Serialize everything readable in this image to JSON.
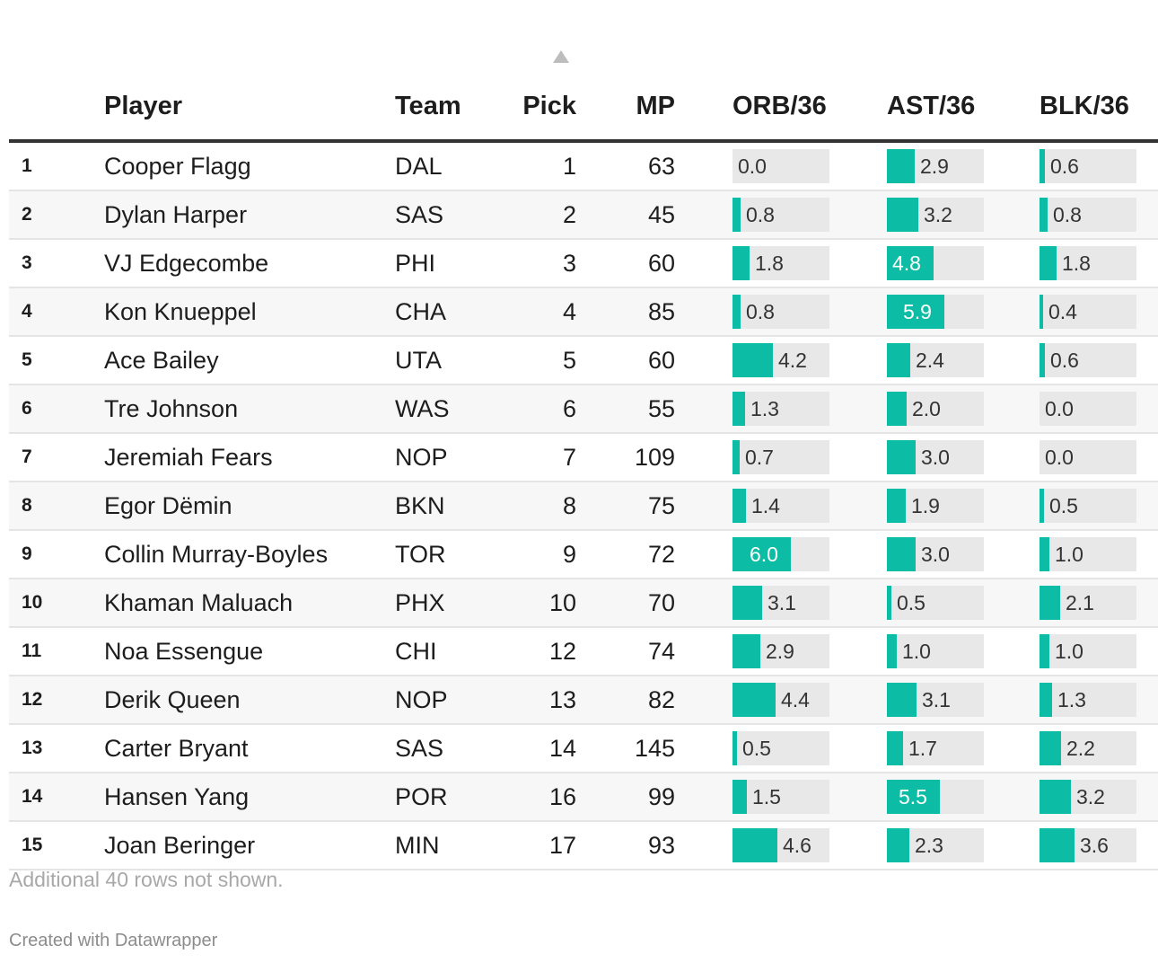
{
  "chart_data": {
    "type": "table",
    "columns": [
      "",
      "Player",
      "Team",
      "Pick",
      "MP",
      "ORB/36",
      "AST/36",
      "BLK/36"
    ],
    "sorted_column": "Pick",
    "bar_columns": [
      "ORB/36",
      "AST/36",
      "BLK/36"
    ],
    "bar_color": "#0dbca4",
    "bar_max": 10,
    "rows": [
      {
        "rank": "1",
        "player": "Cooper Flagg",
        "team": "DAL",
        "pick": 1,
        "mp": 63,
        "orb": 0.0,
        "ast": 2.9,
        "blk": 0.6
      },
      {
        "rank": "2",
        "player": "Dylan Harper",
        "team": "SAS",
        "pick": 2,
        "mp": 45,
        "orb": 0.8,
        "ast": 3.2,
        "blk": 0.8
      },
      {
        "rank": "3",
        "player": "VJ Edgecombe",
        "team": "PHI",
        "pick": 3,
        "mp": 60,
        "orb": 1.8,
        "ast": 4.8,
        "blk": 1.8
      },
      {
        "rank": "4",
        "player": "Kon Knueppel",
        "team": "CHA",
        "pick": 4,
        "mp": 85,
        "orb": 0.8,
        "ast": 5.9,
        "blk": 0.4
      },
      {
        "rank": "5",
        "player": "Ace Bailey",
        "team": "UTA",
        "pick": 5,
        "mp": 60,
        "orb": 4.2,
        "ast": 2.4,
        "blk": 0.6
      },
      {
        "rank": "6",
        "player": "Tre Johnson",
        "team": "WAS",
        "pick": 6,
        "mp": 55,
        "orb": 1.3,
        "ast": 2.0,
        "blk": 0.0
      },
      {
        "rank": "7",
        "player": "Jeremiah Fears",
        "team": "NOP",
        "pick": 7,
        "mp": 109,
        "orb": 0.7,
        "ast": 3.0,
        "blk": 0.0
      },
      {
        "rank": "8",
        "player": "Egor Dëmin",
        "team": "BKN",
        "pick": 8,
        "mp": 75,
        "orb": 1.4,
        "ast": 1.9,
        "blk": 0.5
      },
      {
        "rank": "9",
        "player": "Collin Murray-Boyles",
        "team": "TOR",
        "pick": 9,
        "mp": 72,
        "orb": 6.0,
        "ast": 3.0,
        "blk": 1.0
      },
      {
        "rank": "10",
        "player": "Khaman Maluach",
        "team": "PHX",
        "pick": 10,
        "mp": 70,
        "orb": 3.1,
        "ast": 0.5,
        "blk": 2.1
      },
      {
        "rank": "11",
        "player": "Noa Essengue",
        "team": "CHI",
        "pick": 12,
        "mp": 74,
        "orb": 2.9,
        "ast": 1.0,
        "blk": 1.0
      },
      {
        "rank": "12",
        "player": "Derik Queen",
        "team": "NOP",
        "pick": 13,
        "mp": 82,
        "orb": 4.4,
        "ast": 3.1,
        "blk": 1.3
      },
      {
        "rank": "13",
        "player": "Carter Bryant",
        "team": "SAS",
        "pick": 14,
        "mp": 145,
        "orb": 0.5,
        "ast": 1.7,
        "blk": 2.2
      },
      {
        "rank": "14",
        "player": "Hansen Yang",
        "team": "POR",
        "pick": 16,
        "mp": 99,
        "orb": 1.5,
        "ast": 5.5,
        "blk": 3.2
      },
      {
        "rank": "15",
        "player": "Joan Beringer",
        "team": "MIN",
        "pick": 17,
        "mp": 93,
        "orb": 4.6,
        "ast": 2.3,
        "blk": 3.6
      }
    ]
  },
  "footer": {
    "note": "Additional 40 rows not shown.",
    "credit": "Created with Datawrapper"
  }
}
